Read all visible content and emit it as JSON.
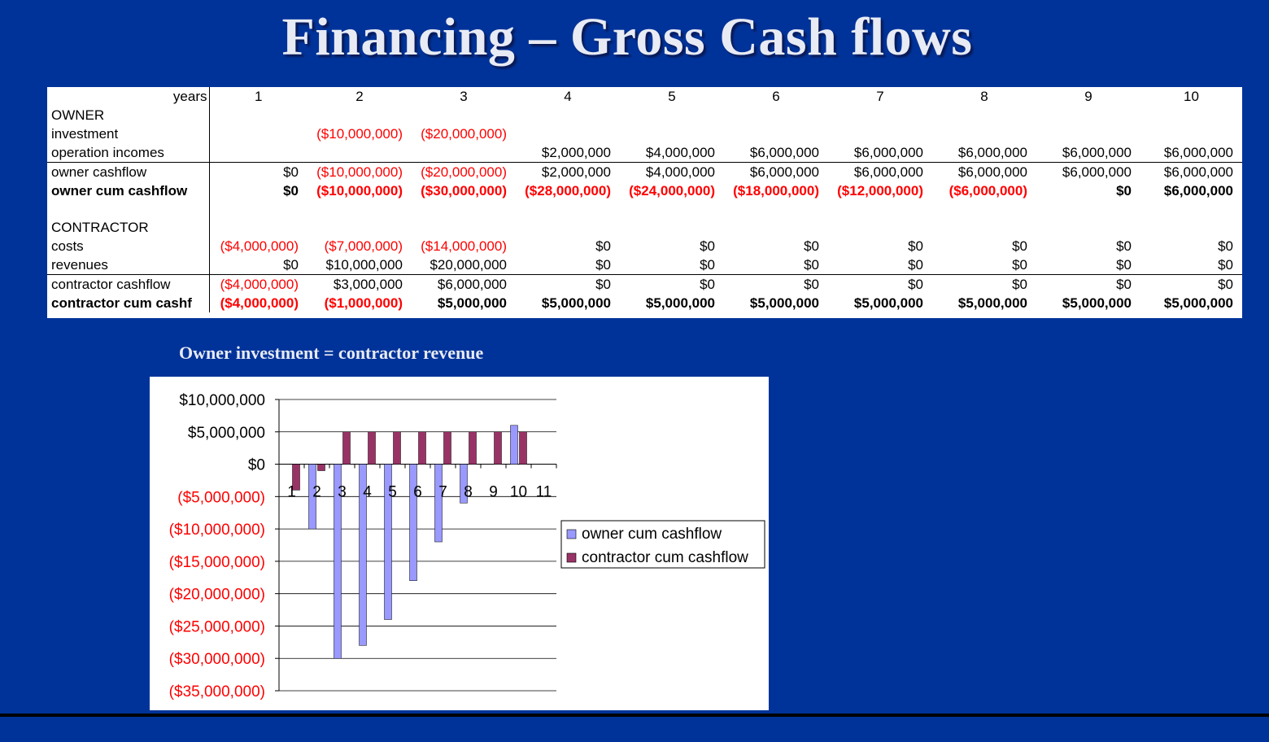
{
  "title": "Financing – Gross Cash flows",
  "table": {
    "header_label": "years",
    "years": [
      "1",
      "2",
      "3",
      "4",
      "5",
      "6",
      "7",
      "8",
      "9",
      "10"
    ],
    "rows": [
      {
        "label": "OWNER",
        "values": [
          "",
          "",
          "",
          "",
          "",
          "",
          "",
          "",
          "",
          ""
        ],
        "style": "plain"
      },
      {
        "label": "investment",
        "values": [
          "",
          "($10,000,000)",
          "($20,000,000)",
          "",
          "",
          "",
          "",
          "",
          "",
          ""
        ],
        "style": "plain"
      },
      {
        "label": "operation incomes",
        "values": [
          "",
          "",
          "",
          "$2,000,000",
          "$4,000,000",
          "$6,000,000",
          "$6,000,000",
          "$6,000,000",
          "$6,000,000",
          "$6,000,000"
        ],
        "style": "plain"
      },
      {
        "label": "owner cashflow",
        "values": [
          "$0",
          "($10,000,000)",
          "($20,000,000)",
          "$2,000,000",
          "$4,000,000",
          "$6,000,000",
          "$6,000,000",
          "$6,000,000",
          "$6,000,000",
          "$6,000,000"
        ],
        "style": "line"
      },
      {
        "label": "owner cum cashflow",
        "values": [
          "$0",
          "($10,000,000)",
          "($30,000,000)",
          "($28,000,000)",
          "($24,000,000)",
          "($18,000,000)",
          "($12,000,000)",
          "($6,000,000)",
          "$0",
          "$6,000,000"
        ],
        "style": "bold"
      },
      {
        "label": "",
        "values": [
          "",
          "",
          "",
          "",
          "",
          "",
          "",
          "",
          "",
          ""
        ],
        "style": "gap"
      },
      {
        "label": "CONTRACTOR",
        "values": [
          "",
          "",
          "",
          "",
          "",
          "",
          "",
          "",
          "",
          ""
        ],
        "style": "plain"
      },
      {
        "label": "costs",
        "values": [
          "($4,000,000)",
          "($7,000,000)",
          "($14,000,000)",
          "$0",
          "$0",
          "$0",
          "$0",
          "$0",
          "$0",
          "$0"
        ],
        "style": "plain"
      },
      {
        "label": "revenues",
        "values": [
          "$0",
          "$10,000,000",
          "$20,000,000",
          "$0",
          "$0",
          "$0",
          "$0",
          "$0",
          "$0",
          "$0"
        ],
        "style": "plain"
      },
      {
        "label": "contractor cashflow",
        "values": [
          "($4,000,000)",
          "$3,000,000",
          "$6,000,000",
          "$0",
          "$0",
          "$0",
          "$0",
          "$0",
          "$0",
          "$0"
        ],
        "style": "line"
      },
      {
        "label": "contractor cum cashf",
        "values": [
          "($4,000,000)",
          "($1,000,000)",
          "$5,000,000",
          "$5,000,000",
          "$5,000,000",
          "$5,000,000",
          "$5,000,000",
          "$5,000,000",
          "$5,000,000",
          "$5,000,000"
        ],
        "style": "bold"
      }
    ]
  },
  "chart_caption": "Owner investment = contractor revenue",
  "chart_data": {
    "type": "bar",
    "categories": [
      "1",
      "2",
      "3",
      "4",
      "5",
      "6",
      "7",
      "8",
      "9",
      "10",
      "11"
    ],
    "series": [
      {
        "name": "owner cum cashflow",
        "values": [
          0,
          -10000000,
          -30000000,
          -28000000,
          -24000000,
          -18000000,
          -12000000,
          -6000000,
          0,
          6000000,
          null
        ],
        "color": "#9999ff"
      },
      {
        "name": "contractor cum cashflow",
        "values": [
          -4000000,
          -1000000,
          5000000,
          5000000,
          5000000,
          5000000,
          5000000,
          5000000,
          5000000,
          5000000,
          null
        ],
        "color": "#993366"
      }
    ],
    "ylim": [
      -35000000,
      10000000
    ],
    "yticks": [
      10000000,
      5000000,
      0,
      -5000000,
      -10000000,
      -15000000,
      -20000000,
      -25000000,
      -30000000,
      -35000000
    ],
    "ytick_labels": [
      "$10,000,000",
      "$5,000,000",
      "$0",
      "($5,000,000)",
      "($10,000,000)",
      "($15,000,000)",
      "($20,000,000)",
      "($25,000,000)",
      "($30,000,000)",
      "($35,000,000)"
    ],
    "negative_label_color": "#ff0000",
    "grid": true,
    "legend_position": "right"
  },
  "colors": {
    "background": "#003399",
    "negative_text": "#ff0000"
  }
}
